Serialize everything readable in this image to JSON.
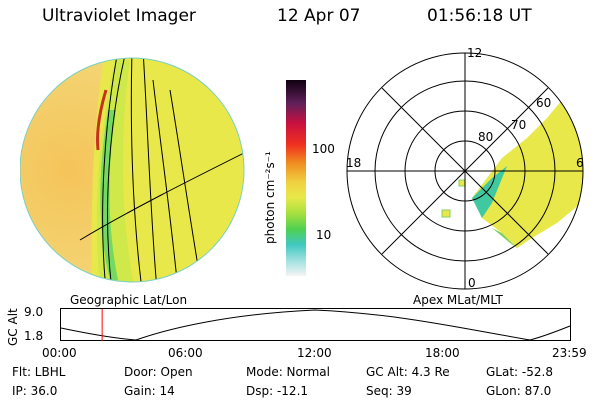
{
  "header": {
    "instrument": "Ultraviolet Imager",
    "date": "12 Apr 07",
    "time": "01:56:18 UT"
  },
  "colorbar": {
    "label": "photon cm⁻²s⁻¹",
    "ticks": [
      "100",
      "10"
    ]
  },
  "left_panel": {
    "caption": "Geographic Lat/Lon"
  },
  "right_panel": {
    "caption": "Apex MLat/MLT",
    "lat_labels": [
      "80",
      "70",
      "60"
    ],
    "mlt_labels": {
      "top": "12",
      "right": "6",
      "bottom": "0",
      "left": "18"
    }
  },
  "altitude_plot": {
    "ylabel": "GC Alt",
    "y_ticks": [
      "9.0",
      "1.8"
    ],
    "x_ticks": [
      "00:00",
      "06:00",
      "12:00",
      "18:00",
      "23:59"
    ],
    "current_marker_time": "01:56:18"
  },
  "info": {
    "flt": "Flt: LBHL",
    "ip": "IP: 36.0",
    "door": "Door: Open",
    "gain": "Gain: 14",
    "mode": "Mode: Normal",
    "dsp": "Dsp:  -12.1",
    "gc_alt": "GC Alt: 4.3 Re",
    "seq": "Seq: 39",
    "glat": "GLat: -52.8",
    "glon": "GLon: 87.0"
  },
  "colors": {
    "accent_marker": "#ff0000",
    "auroral_yellow": "#e8e84a",
    "auroral_green": "#9ee03a",
    "dayside_orange": "#f0c86a"
  }
}
